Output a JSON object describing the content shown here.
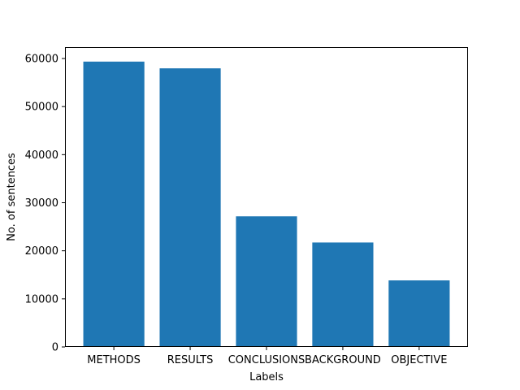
{
  "chart_data": {
    "type": "bar",
    "categories": [
      "METHODS",
      "RESULTS",
      "CONCLUSIONS",
      "BACKGROUND",
      "OBJECTIVE"
    ],
    "values": [
      59353,
      57953,
      27168,
      21727,
      13839
    ],
    "title": "",
    "xlabel": "Labels",
    "ylabel": "No. of sentences",
    "ylim": [
      0,
      62365
    ],
    "yticks": [
      0,
      10000,
      20000,
      30000,
      40000,
      50000,
      60000
    ],
    "grid": false,
    "legend": "none",
    "bar_color": "#1f77b4"
  }
}
